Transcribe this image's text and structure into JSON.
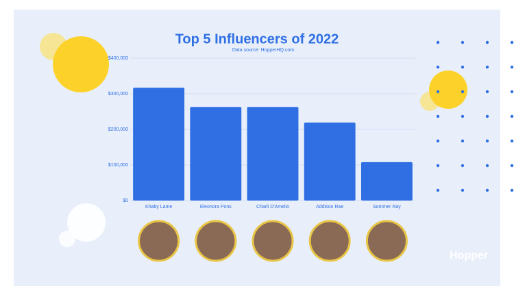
{
  "chart_data": {
    "type": "bar",
    "title": "Top 5 Influencers of 2022",
    "subtitle": "Data source: HopperHQ.com",
    "categories": [
      "Khaby Lame",
      "Eleonora Pons",
      "Charli D'Amelio",
      "Addison Rae",
      "Sommer Ray"
    ],
    "values": [
      317000,
      263000,
      263000,
      219000,
      108000
    ],
    "color": "#2f6fe3",
    "ylim": [
      0,
      400000
    ],
    "yticks": [
      {
        "value": 0,
        "label": "$0"
      },
      {
        "value": 100000,
        "label": "$100,000"
      },
      {
        "value": 200000,
        "label": "$200,000"
      },
      {
        "value": 300000,
        "label": "$300,000"
      },
      {
        "value": 400000,
        "label": "$400,000"
      }
    ],
    "grid": true
  },
  "logo": "Hopper"
}
